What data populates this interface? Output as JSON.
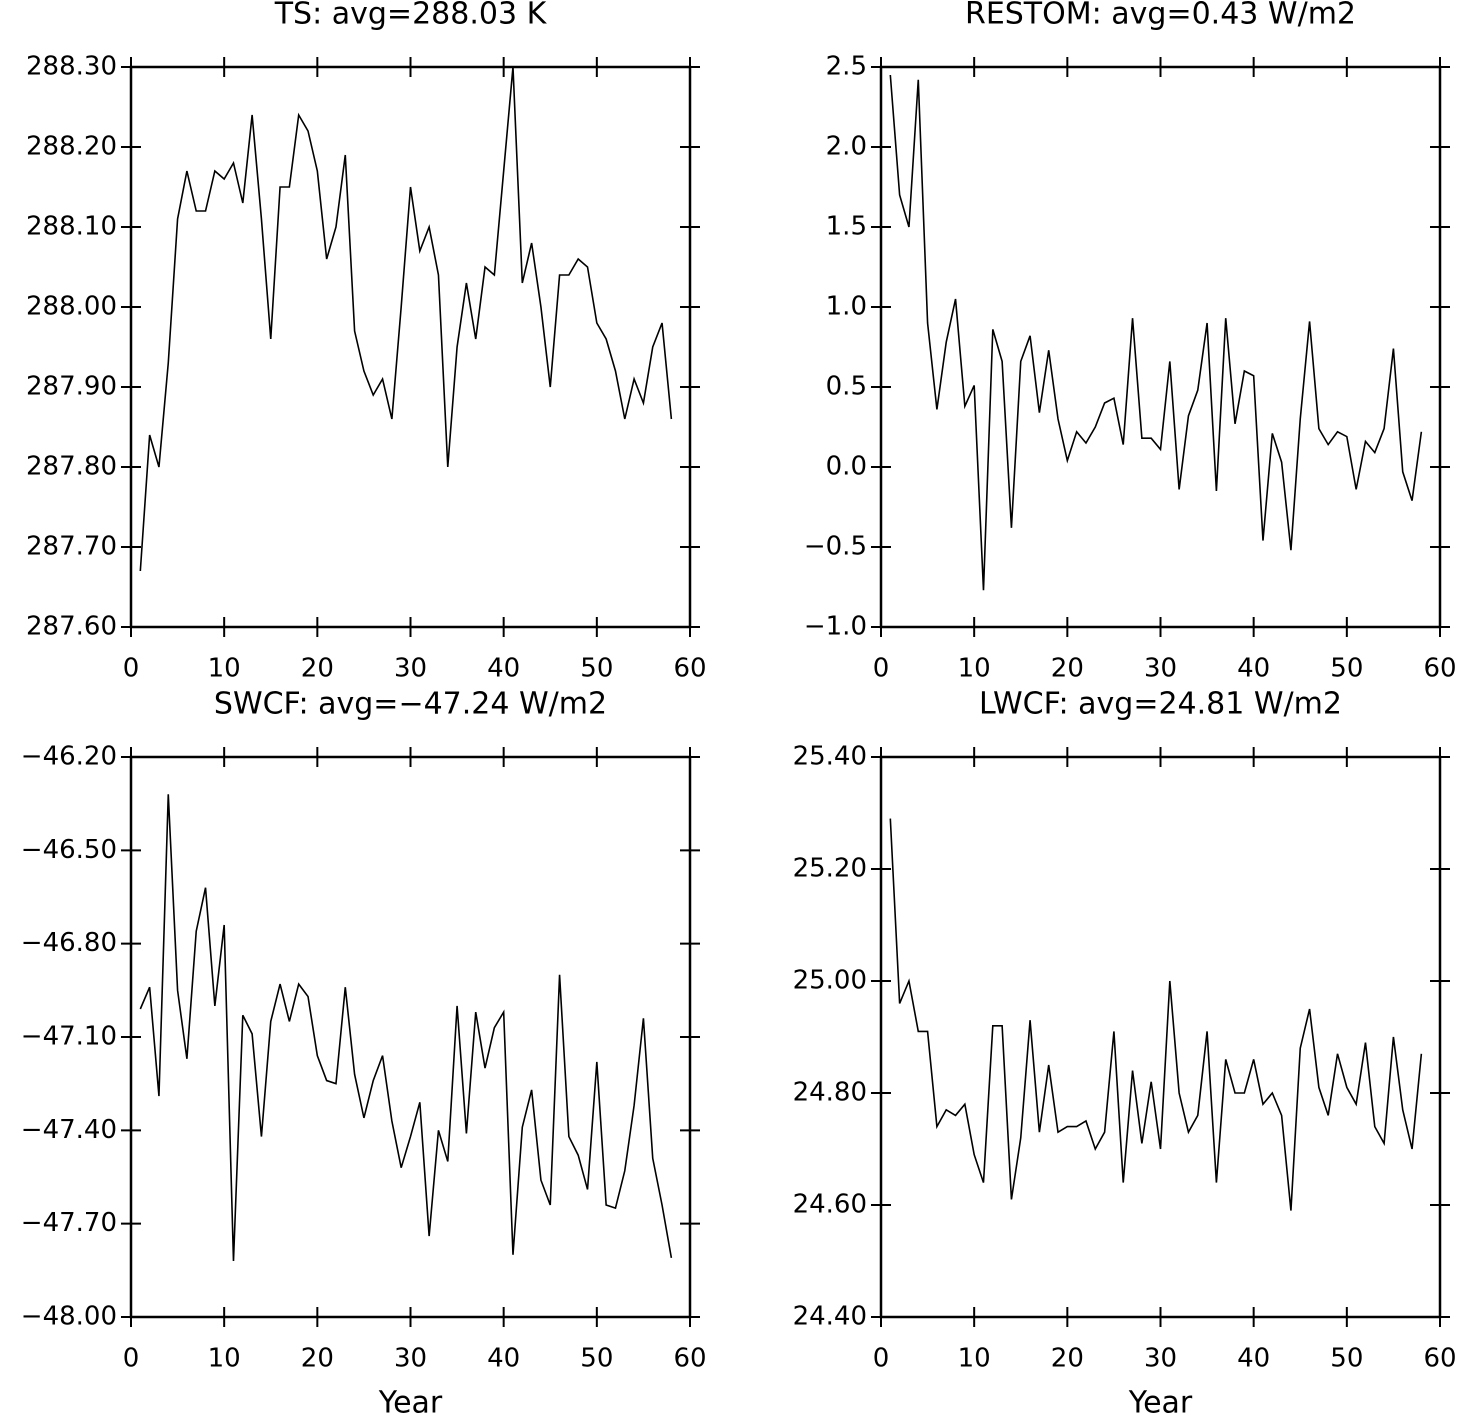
{
  "chart_data": [
    {
      "type": "line",
      "title": "TS: avg=288.03 K",
      "x": [
        1,
        2,
        3,
        4,
        5,
        6,
        7,
        8,
        9,
        10,
        11,
        12,
        13,
        14,
        15,
        16,
        17,
        18,
        19,
        20,
        21,
        22,
        23,
        24,
        25,
        26,
        27,
        28,
        29,
        30,
        31,
        32,
        33,
        34,
        35,
        36,
        37,
        38,
        39,
        40,
        41,
        42,
        43,
        44,
        45,
        46,
        47,
        48,
        49,
        50,
        51,
        52,
        53,
        54,
        55,
        56,
        57,
        58
      ],
      "values": [
        287.67,
        287.84,
        287.8,
        287.93,
        288.11,
        288.17,
        288.12,
        288.12,
        288.17,
        288.16,
        288.18,
        288.13,
        288.24,
        288.11,
        287.96,
        288.15,
        288.15,
        288.24,
        288.22,
        288.17,
        288.06,
        288.1,
        288.19,
        287.97,
        287.92,
        287.89,
        287.91,
        287.86,
        288.0,
        288.15,
        288.07,
        288.1,
        288.04,
        287.8,
        287.95,
        288.03,
        287.96,
        288.05,
        288.04,
        288.17,
        288.3,
        288.03,
        288.08,
        288.0,
        287.9,
        288.04,
        288.04,
        288.06,
        288.05,
        287.98,
        287.96,
        287.92,
        287.86,
        287.91,
        287.88,
        287.95,
        287.98,
        287.86
      ],
      "color": "#000000",
      "xlim": [
        0,
        60
      ],
      "xticks": [
        0,
        10,
        20,
        30,
        40,
        50,
        60
      ],
      "ylim": [
        287.6,
        288.3
      ],
      "yticks": [
        {
          "value": 287.6,
          "label": "287.60"
        },
        {
          "value": 287.7,
          "label": "287.70"
        },
        {
          "value": 287.8,
          "label": "287.80"
        },
        {
          "value": 287.9,
          "label": "287.90"
        },
        {
          "value": 288.0,
          "label": "288.00"
        },
        {
          "value": 288.1,
          "label": "288.10"
        },
        {
          "value": 288.2,
          "label": "288.20"
        },
        {
          "value": 288.3,
          "label": "288.30"
        }
      ]
    },
    {
      "type": "line",
      "title": "RESTOM: avg=0.43 W/m2",
      "x": [
        1,
        2,
        3,
        4,
        5,
        6,
        7,
        8,
        9,
        10,
        11,
        12,
        13,
        14,
        15,
        16,
        17,
        18,
        19,
        20,
        21,
        22,
        23,
        24,
        25,
        26,
        27,
        28,
        29,
        30,
        31,
        32,
        33,
        34,
        35,
        36,
        37,
        38,
        39,
        40,
        41,
        42,
        43,
        44,
        45,
        46,
        47,
        48,
        49,
        50,
        51,
        52,
        53,
        54,
        55,
        56,
        57,
        58
      ],
      "values": [
        2.45,
        1.7,
        1.5,
        2.42,
        0.9,
        0.36,
        0.78,
        1.05,
        0.38,
        0.51,
        -0.77,
        0.86,
        0.66,
        -0.38,
        0.66,
        0.82,
        0.34,
        0.73,
        0.3,
        0.04,
        0.22,
        0.15,
        0.25,
        0.4,
        0.43,
        0.14,
        0.93,
        0.18,
        0.18,
        0.11,
        0.66,
        -0.14,
        0.32,
        0.48,
        0.9,
        -0.15,
        0.93,
        0.27,
        0.6,
        0.57,
        -0.46,
        0.21,
        0.03,
        -0.52,
        0.3,
        0.91,
        0.24,
        0.14,
        0.22,
        0.19,
        -0.14,
        0.16,
        0.09,
        0.24,
        0.74,
        -0.03,
        -0.21,
        0.22
      ],
      "color": "#000000",
      "xlim": [
        0,
        60
      ],
      "xticks": [
        0,
        10,
        20,
        30,
        40,
        50,
        60
      ],
      "ylim": [
        -1.0,
        2.5
      ],
      "yticks": [
        {
          "value": -1.0,
          "label": "−1.0"
        },
        {
          "value": -0.5,
          "label": "−0.5"
        },
        {
          "value": 0,
          "label": "0.0"
        },
        0.5,
        {
          "value": 1,
          "label": "1.0"
        },
        1.5,
        {
          "value": 2,
          "label": "2.0"
        },
        2.5
      ]
    },
    {
      "type": "line",
      "title": "SWCF: avg=−47.24 W/m2",
      "xlabel": "Year",
      "x": [
        1,
        2,
        3,
        4,
        5,
        6,
        7,
        8,
        9,
        10,
        11,
        12,
        13,
        14,
        15,
        16,
        17,
        18,
        19,
        20,
        21,
        22,
        23,
        24,
        25,
        26,
        27,
        28,
        29,
        30,
        31,
        32,
        33,
        34,
        35,
        36,
        37,
        38,
        39,
        40,
        41,
        42,
        43,
        44,
        45,
        46,
        47,
        48,
        49,
        50,
        51,
        52,
        53,
        54,
        55,
        56,
        57,
        58
      ],
      "values": [
        -47.01,
        -46.94,
        -47.29,
        -46.32,
        -46.95,
        -47.17,
        -46.76,
        -46.62,
        -47.0,
        -46.74,
        -47.82,
        -47.03,
        -47.09,
        -47.42,
        -47.05,
        -46.93,
        -47.05,
        -46.93,
        -46.97,
        -47.16,
        -47.24,
        -47.25,
        -46.94,
        -47.22,
        -47.36,
        -47.24,
        -47.16,
        -47.37,
        -47.52,
        -47.42,
        -47.31,
        -47.74,
        -47.4,
        -47.5,
        -47.0,
        -47.41,
        -47.02,
        -47.2,
        -47.07,
        -47.02,
        -47.8,
        -47.39,
        -47.27,
        -47.56,
        -47.64,
        -46.9,
        -47.42,
        -47.48,
        -47.59,
        -47.18,
        -47.64,
        -47.65,
        -47.53,
        -47.32,
        -47.04,
        -47.49,
        -47.64,
        -47.81
      ],
      "color": "#000000",
      "xlim": [
        0,
        60
      ],
      "xticks": [
        0,
        10,
        20,
        30,
        40,
        50,
        60
      ],
      "ylim": [
        -48.0,
        -46.2
      ],
      "yticks": [
        {
          "value": -48.0,
          "label": "−48.00"
        },
        {
          "value": -47.7,
          "label": "−47.70"
        },
        {
          "value": -47.4,
          "label": "−47.40"
        },
        {
          "value": -47.1,
          "label": "−47.10"
        },
        {
          "value": -46.8,
          "label": "−46.80"
        },
        {
          "value": -46.5,
          "label": "−46.50"
        },
        {
          "value": -46.2,
          "label": "−46.20"
        }
      ]
    },
    {
      "type": "line",
      "title": "LWCF: avg=24.81 W/m2",
      "xlabel": "Year",
      "x": [
        1,
        2,
        3,
        4,
        5,
        6,
        7,
        8,
        9,
        10,
        11,
        12,
        13,
        14,
        15,
        16,
        17,
        18,
        19,
        20,
        21,
        22,
        23,
        24,
        25,
        26,
        27,
        28,
        29,
        30,
        31,
        32,
        33,
        34,
        35,
        36,
        37,
        38,
        39,
        40,
        41,
        42,
        43,
        44,
        45,
        46,
        47,
        48,
        49,
        50,
        51,
        52,
        53,
        54,
        55,
        56,
        57,
        58
      ],
      "values": [
        25.29,
        24.96,
        25.0,
        24.91,
        24.91,
        24.74,
        24.77,
        24.76,
        24.78,
        24.69,
        24.64,
        24.92,
        24.92,
        24.61,
        24.72,
        24.93,
        24.73,
        24.85,
        24.73,
        24.74,
        24.74,
        24.75,
        24.7,
        24.73,
        24.91,
        24.64,
        24.84,
        24.71,
        24.82,
        24.7,
        25.0,
        24.8,
        24.73,
        24.76,
        24.91,
        24.64,
        24.86,
        24.8,
        24.8,
        24.86,
        24.78,
        24.8,
        24.76,
        24.59,
        24.88,
        24.95,
        24.81,
        24.76,
        24.87,
        24.81,
        24.78,
        24.89,
        24.74,
        24.71,
        24.9,
        24.77,
        24.7,
        24.87
      ],
      "color": "#000000",
      "xlim": [
        0,
        60
      ],
      "xticks": [
        0,
        10,
        20,
        30,
        40,
        50,
        60
      ],
      "ylim": [
        24.4,
        25.4
      ],
      "yticks": [
        {
          "value": 24.4,
          "label": "24.40"
        },
        {
          "value": 24.6,
          "label": "24.60"
        },
        {
          "value": 24.8,
          "label": "24.80"
        },
        {
          "value": 25.0,
          "label": "25.00"
        },
        {
          "value": 25.2,
          "label": "25.20"
        },
        {
          "value": 25.4,
          "label": "25.40"
        }
      ]
    }
  ]
}
